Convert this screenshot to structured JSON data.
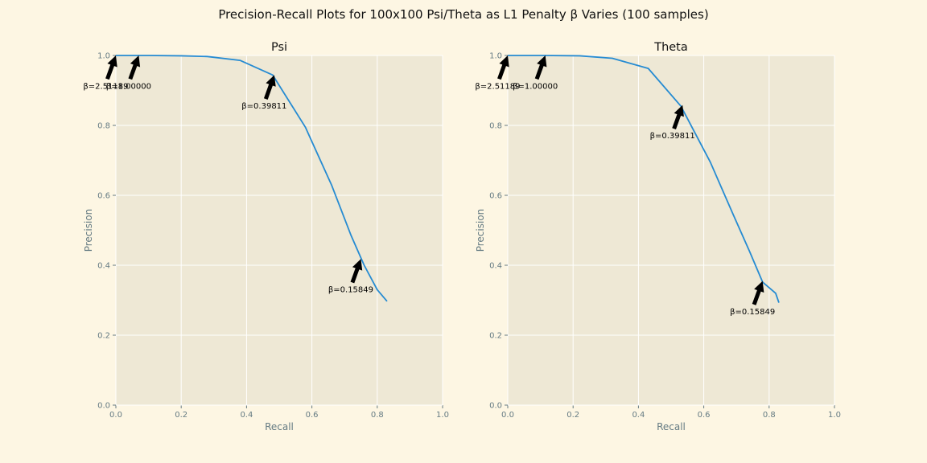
{
  "figure": {
    "suptitle": "Precision-Recall Plots for 100x100 Psi/Theta as L1 Penalty β Varies (100 samples)"
  },
  "chart_data": [
    {
      "type": "line",
      "title": "Psi",
      "xlabel": "Recall",
      "ylabel": "Precision",
      "xlim": [
        0.0,
        1.0
      ],
      "ylim": [
        0.0,
        1.0
      ],
      "xticks": [
        "0.0",
        "0.2",
        "0.4",
        "0.6",
        "0.8",
        "1.0"
      ],
      "yticks": [
        "0.0",
        "0.2",
        "0.4",
        "0.6",
        "0.8",
        "1.0"
      ],
      "grid": true,
      "color": "#268bd2",
      "series": [
        {
          "x": [
            0.0,
            0.02,
            0.05,
            0.1,
            0.2,
            0.28,
            0.38,
            0.48,
            0.58,
            0.66,
            0.72,
            0.76,
            0.8,
            0.83
          ],
          "y": [
            1.0,
            1.0,
            1.0,
            1.0,
            0.999,
            0.997,
            0.986,
            0.944,
            0.795,
            0.63,
            0.485,
            0.4,
            0.33,
            0.297
          ]
        }
      ],
      "annotations": [
        {
          "text": "β=2.51189",
          "x": 0.0,
          "y": 1.0,
          "text_x": -0.1,
          "text_y": 0.905
        },
        {
          "text": "β=1.00000",
          "x": 0.07,
          "y": 1.0,
          "text_x": -0.03,
          "text_y": 0.905
        },
        {
          "text": "β=0.39811",
          "x": 0.485,
          "y": 0.944,
          "text_x": 0.385,
          "text_y": 0.848
        },
        {
          "text": "β=0.15849",
          "x": 0.75,
          "y": 0.418,
          "text_x": 0.65,
          "text_y": 0.323
        }
      ]
    },
    {
      "type": "line",
      "title": "Theta",
      "xlabel": "Recall",
      "ylabel": "Precision",
      "xlim": [
        0.0,
        1.0
      ],
      "ylim": [
        0.0,
        1.0
      ],
      "xticks": [
        "0.0",
        "0.2",
        "0.4",
        "0.6",
        "0.8",
        "1.0"
      ],
      "yticks": [
        "0.0",
        "0.2",
        "0.4",
        "0.6",
        "0.8",
        "1.0"
      ],
      "grid": true,
      "color": "#268bd2",
      "series": [
        {
          "x": [
            0.0,
            0.01,
            0.05,
            0.11,
            0.22,
            0.32,
            0.43,
            0.53,
            0.62,
            0.69,
            0.74,
            0.78,
            0.82,
            0.83
          ],
          "y": [
            1.0,
            1.0,
            1.0,
            1.0,
            0.999,
            0.992,
            0.963,
            0.855,
            0.695,
            0.545,
            0.44,
            0.352,
            0.32,
            0.293
          ]
        }
      ],
      "annotations": [
        {
          "text": "β=2.51189",
          "x": 0.0,
          "y": 1.0,
          "text_x": -0.1,
          "text_y": 0.905
        },
        {
          "text": "β=1.00000",
          "x": 0.115,
          "y": 1.0,
          "text_x": 0.015,
          "text_y": 0.905
        },
        {
          "text": "β=0.39811",
          "x": 0.535,
          "y": 0.858,
          "text_x": 0.435,
          "text_y": 0.763
        },
        {
          "text": "β=0.15849",
          "x": 0.78,
          "y": 0.355,
          "text_x": 0.68,
          "text_y": 0.26
        }
      ]
    }
  ]
}
